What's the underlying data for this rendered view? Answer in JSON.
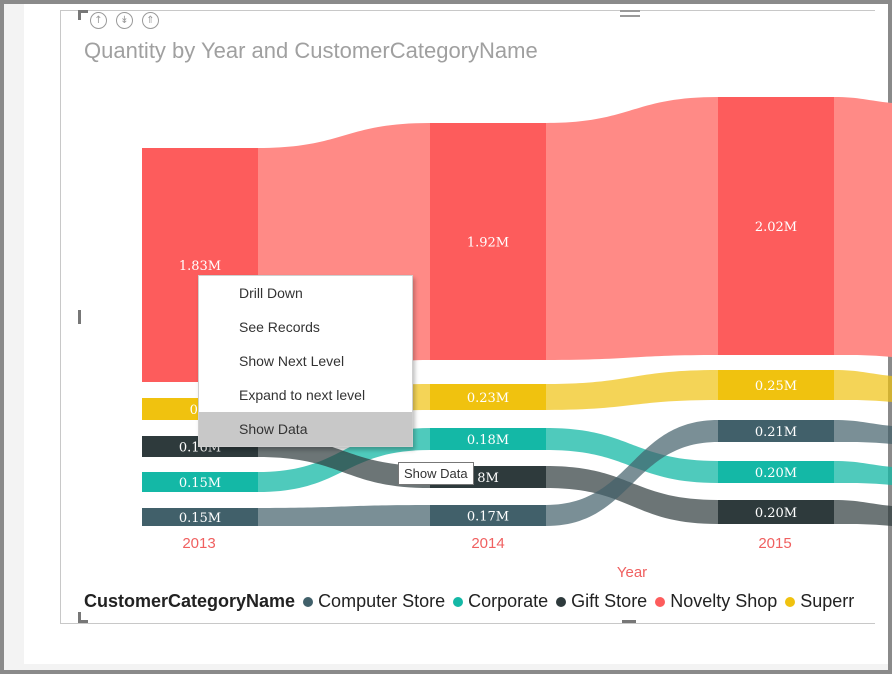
{
  "toolbar": {
    "icons": [
      "drill-up-icon",
      "drill-down-all-icon",
      "expand-all-icon",
      "grip-icon"
    ]
  },
  "visual": {
    "title": "Quantity by Year and CustomerCategoryName"
  },
  "chart_data": {
    "type": "ribbon",
    "title": "Quantity by Year and CustomerCategoryName",
    "xlabel": "Year",
    "categories": [
      "2013",
      "2014",
      "2015"
    ],
    "series": [
      {
        "name": "Computer Store",
        "color": "#41606a",
        "labels": [
          "0.15M",
          "0.17M",
          "0.21M"
        ]
      },
      {
        "name": "Corporate",
        "color": "#14b8a6",
        "labels": [
          "0.15M",
          "0.18M",
          "0.20M"
        ]
      },
      {
        "name": "Gift Store",
        "color": "#2e3a3c",
        "labels": [
          "0.16M",
          "8M",
          "0.20M"
        ]
      },
      {
        "name": "Novelty Shop",
        "color": "#fd5c5c",
        "labels": [
          "1.83M",
          "1.92M",
          "2.02M"
        ]
      },
      {
        "name": "Superr",
        "color": "#f0c20f",
        "labels": [
          "0.1",
          "0.23M",
          "0.25M"
        ]
      }
    ]
  },
  "legend": {
    "title": "CustomerCategoryName",
    "items": [
      {
        "label": "Computer Store",
        "color": "#41606a"
      },
      {
        "label": "Corporate",
        "color": "#14b8a6"
      },
      {
        "label": "Gift Store",
        "color": "#2e3a3c"
      },
      {
        "label": "Novelty Shop",
        "color": "#fd5c5c"
      },
      {
        "label": "Superr",
        "color": "#f0c20f"
      }
    ]
  },
  "context_menu": {
    "items": [
      "Drill Down",
      "See Records",
      "Show Next Level",
      "Expand to next level",
      "Show Data"
    ],
    "highlighted": "Show Data"
  },
  "tooltip": {
    "text": "Show Data"
  }
}
